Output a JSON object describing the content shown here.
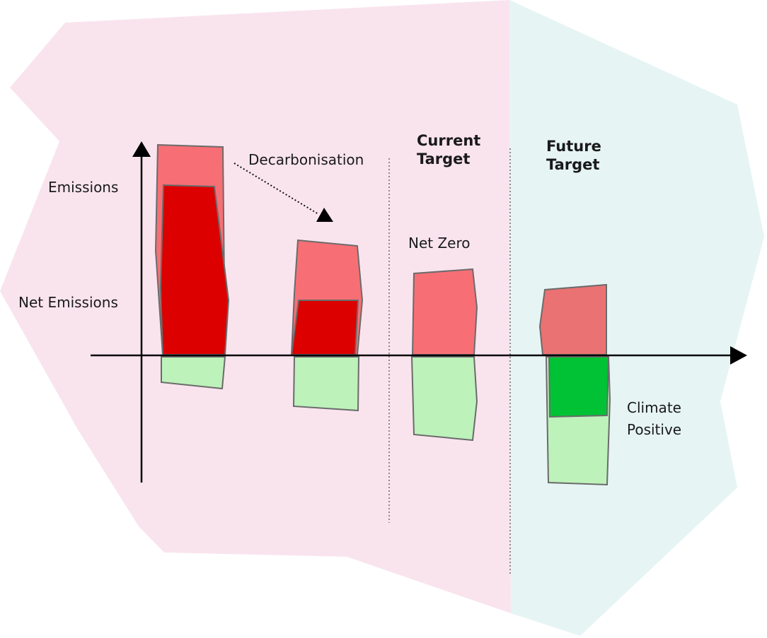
{
  "colors": {
    "background_left": "#f9e4ee",
    "background_right": "#e6f4f4",
    "emissions_light": "#f76f75",
    "emissions_dark": "#dc0000",
    "emissions_muted": "#eb7272",
    "offset_light": "#bdf2bb",
    "offset_dark": "#00c234",
    "outline": "#6b6b6b",
    "axis": "#000000"
  },
  "labels": {
    "emissions": "Emissions",
    "net_emissions": "Net Emissions",
    "decarbonisation": "Decarbonisation",
    "net_zero": "Net Zero",
    "climate_positive_line1": "Climate",
    "climate_positive_line2": "Positive"
  },
  "headers": {
    "current_target_line1": "Current",
    "current_target_line2": "Target",
    "future_target_line1": "Future",
    "future_target_line2": "Target"
  },
  "icons": {
    "y_axis_arrow": "arrow-up-icon",
    "x_axis_arrow": "arrow-right-icon",
    "trend_arrow": "arrow-down-right-icon"
  }
}
